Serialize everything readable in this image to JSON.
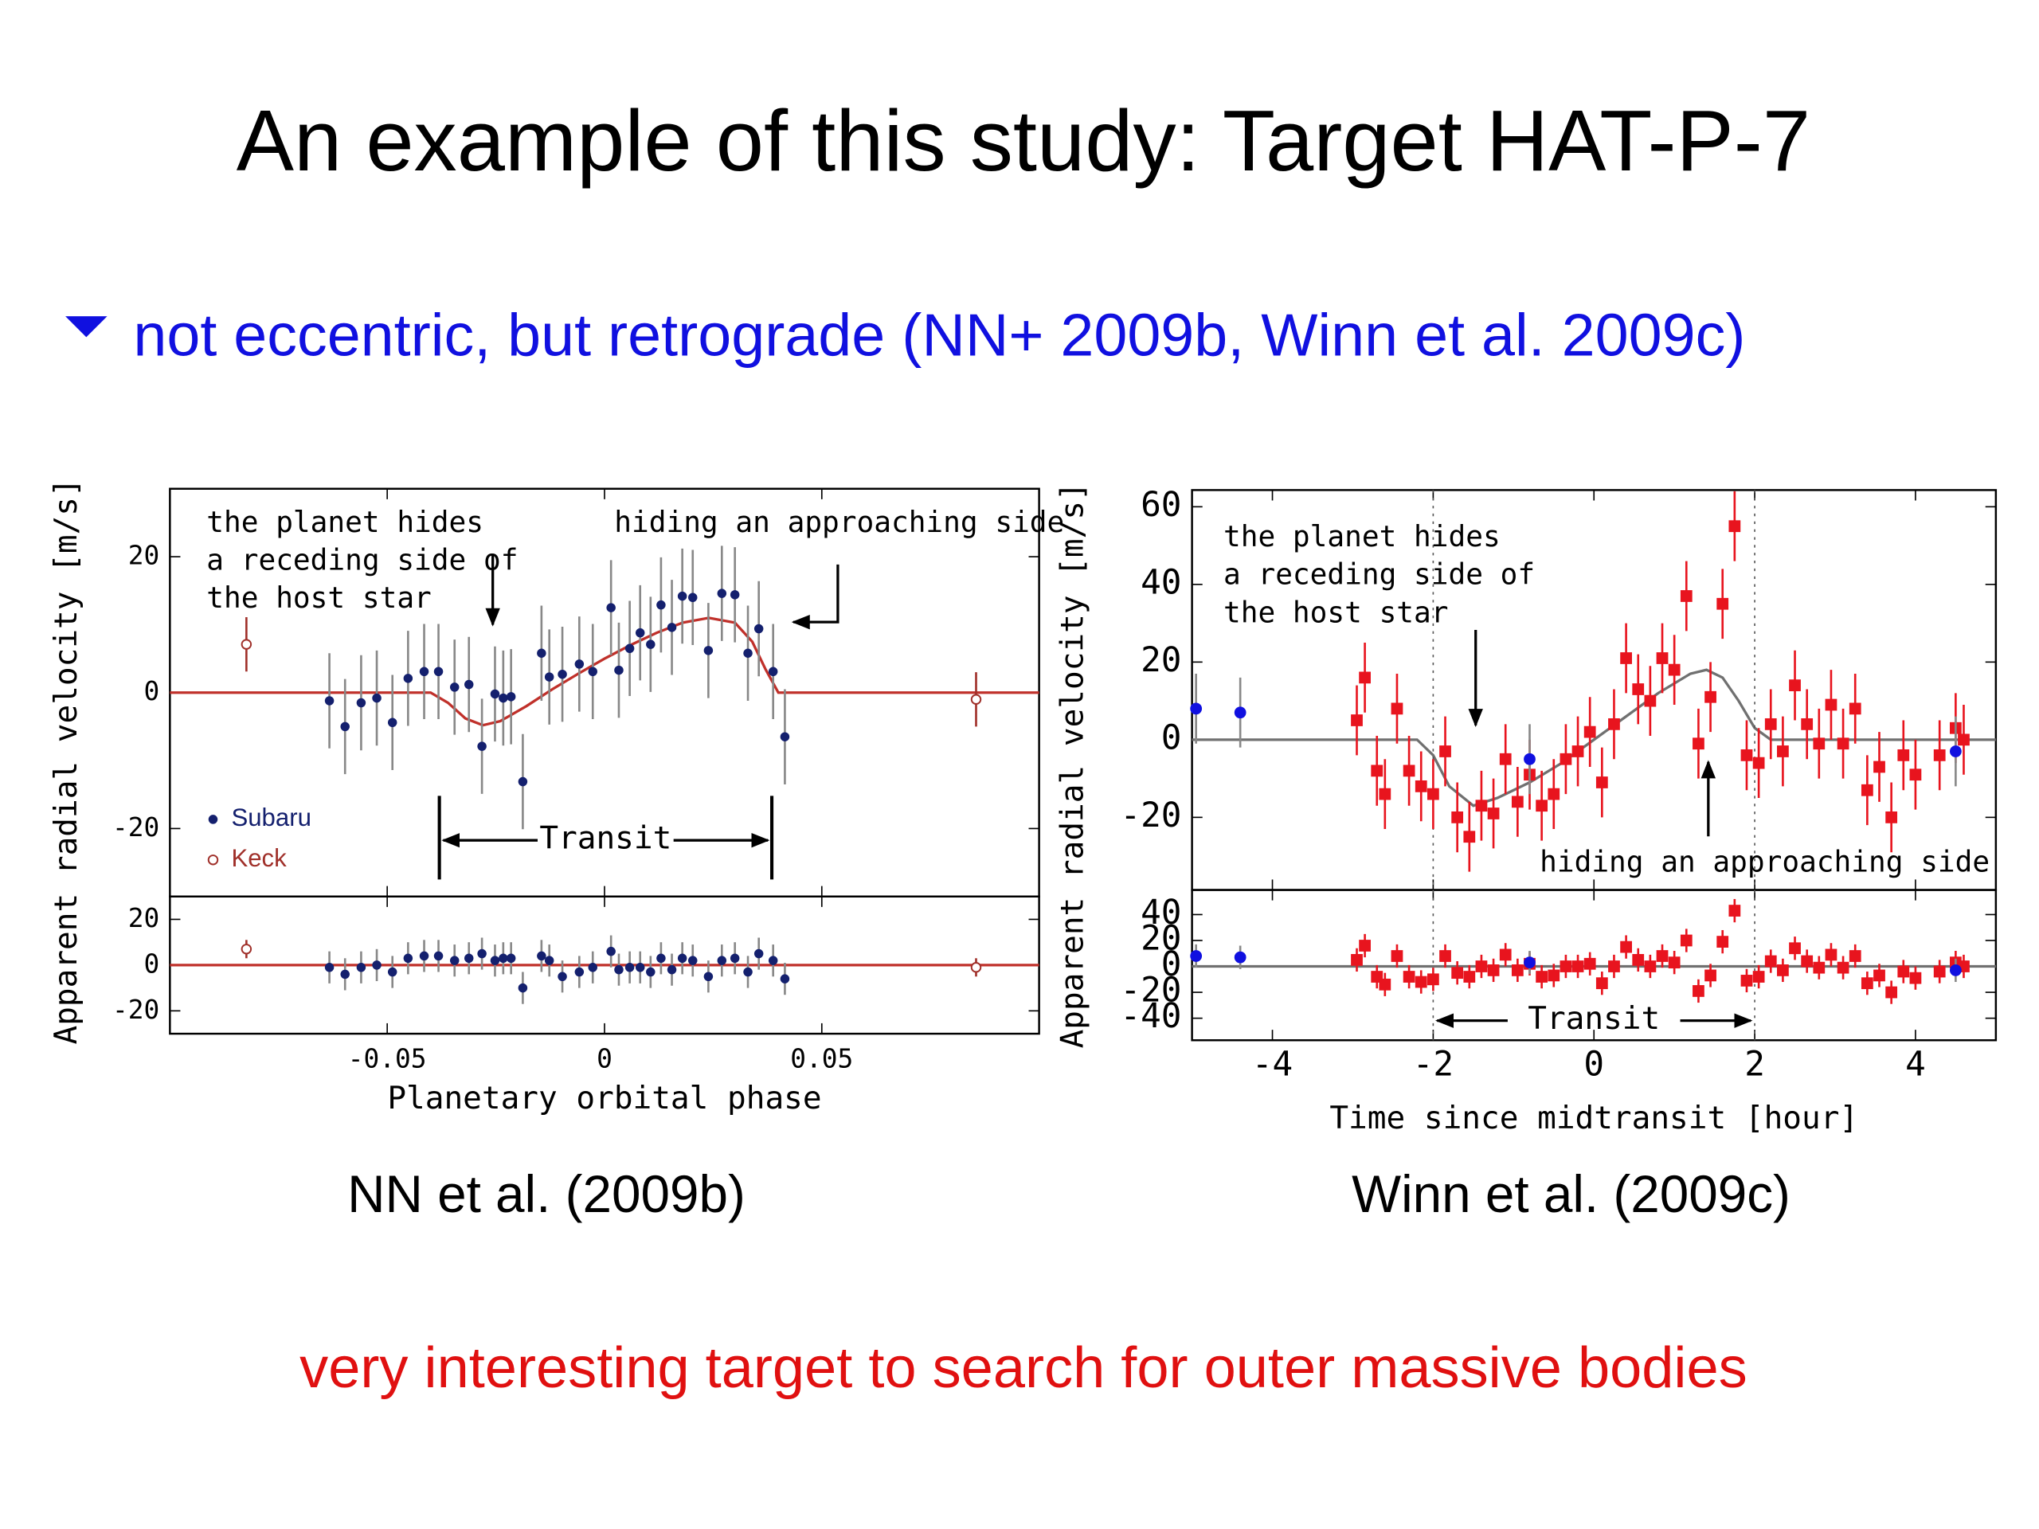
{
  "title": "An example of this study: Target HAT-P-7",
  "bullet": "not eccentric, but retrograde (NN+ 2009b, Winn et al. 2009c)",
  "captions": [
    "NN et al. (2009b)",
    "Winn et al. (2009c)"
  ],
  "footer": "very interesting target to search for outer massive bodies",
  "chart_data": [
    {
      "type": "scatter",
      "xlabel": "Planetary orbital phase",
      "ylabel": "Apparent radial velocity [m/s]",
      "xlim": [
        -0.1,
        0.1
      ],
      "xticks": [
        -0.05,
        0,
        0.05
      ],
      "ylim": [
        -30,
        30
      ],
      "yticks": [
        -20,
        0,
        20
      ],
      "residual_ylim": [
        -30,
        30
      ],
      "residual_yticks": [
        -20,
        0,
        20
      ],
      "receding_note": [
        "the planet hides",
        "a receding side of",
        "the host star"
      ],
      "approaching_note": "hiding an approaching side",
      "transit_label": "Transit",
      "transit": [
        -0.038,
        0.0385
      ],
      "transit_style": "bracket",
      "legend": "lower left",
      "model": {
        "color": "#c0302a",
        "x": [
          -0.1,
          -0.04,
          -0.036,
          -0.032,
          -0.028,
          -0.024,
          -0.018,
          -0.012,
          -0.006,
          0,
          0.006,
          0.012,
          0.018,
          0.024,
          0.03,
          0.034,
          0.037,
          0.04,
          0.1
        ],
        "values": [
          0,
          0,
          -1.5,
          -3.8,
          -4.8,
          -4.2,
          -2,
          0.5,
          2.8,
          5,
          7,
          8.8,
          10.3,
          11,
          10.3,
          7.5,
          3.5,
          0,
          0
        ]
      },
      "series": [
        {
          "name": "Subaru",
          "color": "#14206e",
          "marker": "circle",
          "error": 7,
          "x": [
            -0.0633,
            -0.0597,
            -0.056,
            -0.0524,
            -0.0488,
            -0.0452,
            -0.0415,
            -0.0382,
            -0.0345,
            -0.0312,
            -0.0282,
            -0.0252,
            -0.0233,
            -0.0215,
            -0.0188,
            -0.0145,
            -0.0127,
            -0.0097,
            -0.0058,
            -0.0027,
            0.0015,
            0.0033,
            0.0058,
            0.0082,
            0.0106,
            0.013,
            0.0155,
            0.0179,
            0.0203,
            0.0239,
            0.027,
            0.03,
            0.033,
            0.0355,
            0.0388,
            0.0415
          ],
          "values": [
            -1.2,
            -5,
            -1.5,
            -0.8,
            -4.4,
            2.1,
            3.1,
            3.1,
            0.8,
            1.2,
            -7.9,
            -0.2,
            -0.8,
            -0.6,
            -13.1,
            5.8,
            2.3,
            2.7,
            4.2,
            3.1,
            12.5,
            3.3,
            6.5,
            8.8,
            7.1,
            12.9,
            9.6,
            14.2,
            14,
            6.2,
            14.6,
            14.4,
            5.8,
            9.4,
            3.1,
            -6.5
          ],
          "residuals": [
            -1,
            -4,
            -1,
            0,
            -3,
            3,
            4,
            4,
            2,
            3,
            5,
            2,
            3,
            3,
            -10,
            4,
            2,
            -5,
            -3,
            -1,
            6,
            -2,
            -1,
            -1,
            -3,
            3,
            -2,
            3,
            2,
            -5,
            2,
            3,
            -3,
            5,
            2,
            -6
          ]
        },
        {
          "name": "Keck",
          "color": "#a0302a",
          "marker": "open-circle",
          "error": 4,
          "x": [
            -0.0824,
            0.0855
          ],
          "values": [
            7.1,
            -1
          ],
          "residuals": [
            7,
            -1
          ]
        }
      ]
    },
    {
      "type": "scatter",
      "xlabel": "Time since midtransit [hour]",
      "ylabel": "Apparent radial velocity [m/s]",
      "xlim": [
        -5,
        5
      ],
      "xticks": [
        -4,
        -2,
        0,
        2,
        4
      ],
      "ylim": [
        -38.7,
        64.3
      ],
      "yticks": [
        -20,
        0,
        20,
        40,
        60
      ],
      "residual_ylim": [
        -57,
        59
      ],
      "residual_yticks": [
        -40,
        -20,
        0,
        20,
        40
      ],
      "receding_note": [
        "the planet hides",
        "a receding side of",
        "the host star"
      ],
      "approaching_note": "hiding an approaching side",
      "transit_label": "Transit",
      "transit": [
        -2,
        2
      ],
      "transit_style": "dotted",
      "model": {
        "color": "#707070",
        "x": [
          -5,
          -2.2,
          -2,
          -1.8,
          -1.5,
          -1.2,
          -0.8,
          -0.4,
          0,
          0.4,
          0.8,
          1.2,
          1.4,
          1.6,
          1.8,
          2,
          2.2,
          5
        ],
        "values": [
          0,
          0,
          -4,
          -12,
          -17,
          -15,
          -11,
          -6,
          0,
          6,
          12,
          17,
          18,
          16,
          10,
          3,
          0,
          0
        ]
      },
      "series": [
        {
          "color": "#e8141e",
          "marker": "square",
          "error": 9,
          "x": [
            -2.95,
            -2.85,
            -2.7,
            -2.6,
            -2.45,
            -2.3,
            -2.15,
            -2,
            -1.85,
            -1.7,
            -1.55,
            -1.4,
            -1.25,
            -1.1,
            -0.95,
            -0.8,
            -0.65,
            -0.5,
            -0.35,
            -0.2,
            -0.05,
            0.1,
            0.25,
            0.4,
            0.55,
            0.7,
            0.85,
            1,
            1.15,
            1.3,
            1.45,
            1.6,
            1.75,
            1.9,
            2.05,
            2.2,
            2.35,
            2.5,
            2.65,
            2.8,
            2.95,
            3.1,
            3.25,
            3.4,
            3.55,
            3.7,
            3.85,
            4,
            4.3,
            4.5,
            4.6
          ],
          "values": [
            5,
            16,
            -8,
            -14,
            8,
            -8,
            -12,
            -14,
            -3,
            -20,
            -25,
            -17,
            -19,
            -5,
            -16,
            -9,
            -17,
            -14,
            -5,
            -3,
            2,
            -11,
            4,
            21,
            13,
            10,
            21,
            18,
            37,
            -1,
            11,
            35,
            55,
            -4,
            -6,
            4,
            -3,
            14,
            4,
            -1,
            9,
            -1,
            8,
            -13,
            -7,
            -20,
            -4,
            -9,
            -4,
            3,
            0
          ],
          "residuals": [
            5,
            16,
            -8,
            -14,
            8,
            -8,
            -12,
            -10,
            8,
            -5,
            -8,
            0,
            -3,
            9,
            -3,
            2,
            -8,
            -7,
            0,
            0,
            2,
            -13,
            0,
            15,
            5,
            0,
            8,
            3,
            20,
            -19,
            -7,
            19,
            43,
            -11,
            -8,
            4,
            -3,
            14,
            4,
            -1,
            9,
            -1,
            8,
            -13,
            -7,
            -20,
            -4,
            -9,
            -4,
            3,
            0
          ]
        },
        {
          "color": "#1010e0",
          "marker": "circle",
          "error": 9,
          "x": [
            -4.95,
            -4.4,
            -0.8,
            4.5
          ],
          "values": [
            8,
            7,
            -5,
            -3
          ],
          "residuals": [
            8,
            7,
            3,
            -3
          ]
        }
      ]
    }
  ]
}
